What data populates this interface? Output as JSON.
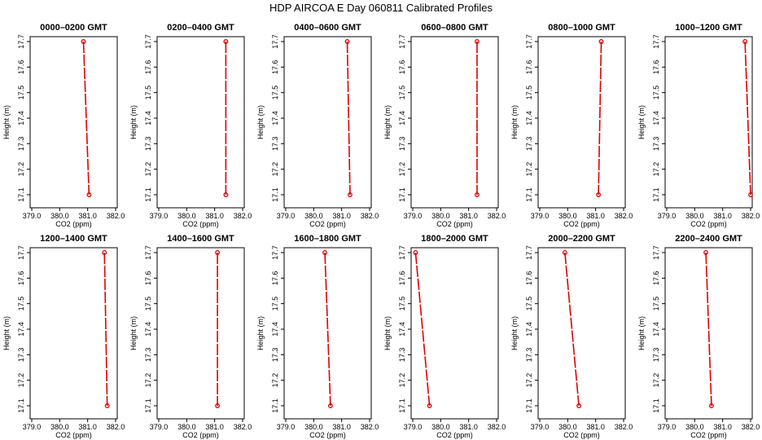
{
  "figure": {
    "title": "HDP  AIRCOA E  Day 060811  Calibrated Profiles"
  },
  "colors": {
    "profile": "#e00000",
    "axes": "#000000",
    "background": "#ffffff"
  },
  "chart_data": [
    {
      "type": "line",
      "title": "0000–0200 GMT",
      "xlabel": "CO2 (ppm)",
      "ylabel": "Height (m)",
      "xlim": [
        379.0,
        382.0
      ],
      "ylim": [
        17.1,
        17.7
      ],
      "xticks": [
        "379.0",
        "380.0",
        "381.0",
        "382.0"
      ],
      "yticks": [
        "17.1",
        "17.2",
        "17.3",
        "17.4",
        "17.5",
        "17.6",
        "17.7"
      ],
      "points": [
        {
          "x": 380.85,
          "y": 17.7
        },
        {
          "x": 381.05,
          "y": 17.1
        }
      ]
    },
    {
      "type": "line",
      "title": "0200–0400 GMT",
      "xlabel": "CO2 (ppm)",
      "ylabel": "Height (m)",
      "xlim": [
        379.0,
        382.0
      ],
      "ylim": [
        17.1,
        17.7
      ],
      "xticks": [
        "379.0",
        "380.0",
        "381.0",
        "382.0"
      ],
      "yticks": [
        "17.1",
        "17.2",
        "17.3",
        "17.4",
        "17.5",
        "17.6",
        "17.7"
      ],
      "points": [
        {
          "x": 381.4,
          "y": 17.7
        },
        {
          "x": 381.4,
          "y": 17.1
        }
      ]
    },
    {
      "type": "line",
      "title": "0400–0600 GMT",
      "xlabel": "CO2 (ppm)",
      "ylabel": "Height (m)",
      "xlim": [
        379.0,
        382.0
      ],
      "ylim": [
        17.1,
        17.7
      ],
      "xticks": [
        "379.0",
        "380.0",
        "381.0",
        "382.0"
      ],
      "yticks": [
        "17.1",
        "17.2",
        "17.3",
        "17.4",
        "17.5",
        "17.6",
        "17.7"
      ],
      "points": [
        {
          "x": 381.2,
          "y": 17.7
        },
        {
          "x": 381.3,
          "y": 17.1
        }
      ]
    },
    {
      "type": "line",
      "title": "0600–0800 GMT",
      "xlabel": "CO2 (ppm)",
      "ylabel": "Height (m)",
      "xlim": [
        379.0,
        382.0
      ],
      "ylim": [
        17.1,
        17.7
      ],
      "xticks": [
        "379.0",
        "380.0",
        "381.0",
        "382.0"
      ],
      "yticks": [
        "17.1",
        "17.2",
        "17.3",
        "17.4",
        "17.5",
        "17.6",
        "17.7"
      ],
      "points": [
        {
          "x": 381.3,
          "y": 17.7
        },
        {
          "x": 381.3,
          "y": 17.1
        }
      ]
    },
    {
      "type": "line",
      "title": "0800–1000 GMT",
      "xlabel": "CO2 (ppm)",
      "ylabel": "Height (m)",
      "xlim": [
        379.0,
        382.0
      ],
      "ylim": [
        17.1,
        17.7
      ],
      "xticks": [
        "379.0",
        "380.0",
        "381.0",
        "382.0"
      ],
      "yticks": [
        "17.1",
        "17.2",
        "17.3",
        "17.4",
        "17.5",
        "17.6",
        "17.7"
      ],
      "points": [
        {
          "x": 381.2,
          "y": 17.7
        },
        {
          "x": 381.1,
          "y": 17.1
        }
      ]
    },
    {
      "type": "line",
      "title": "1000–1200 GMT",
      "xlabel": "CO2 (ppm)",
      "ylabel": "Height (m)",
      "xlim": [
        379.0,
        382.0
      ],
      "ylim": [
        17.1,
        17.7
      ],
      "xticks": [
        "379.0",
        "380.0",
        "381.0",
        "382.0"
      ],
      "yticks": [
        "17.1",
        "17.2",
        "17.3",
        "17.4",
        "17.5",
        "17.6",
        "17.7"
      ],
      "points": [
        {
          "x": 381.8,
          "y": 17.7
        },
        {
          "x": 382.0,
          "y": 17.1
        }
      ]
    },
    {
      "type": "line",
      "title": "1200–1400 GMT",
      "xlabel": "CO2 (ppm)",
      "ylabel": "Height (m)",
      "xlim": [
        379.0,
        382.0
      ],
      "ylim": [
        17.1,
        17.7
      ],
      "xticks": [
        "379.0",
        "380.0",
        "381.0",
        "382.0"
      ],
      "yticks": [
        "17.1",
        "17.2",
        "17.3",
        "17.4",
        "17.5",
        "17.6",
        "17.7"
      ],
      "points": [
        {
          "x": 381.6,
          "y": 17.7
        },
        {
          "x": 381.7,
          "y": 17.1
        }
      ]
    },
    {
      "type": "line",
      "title": "1400–1600 GMT",
      "xlabel": "CO2 (ppm)",
      "ylabel": "Height (m)",
      "xlim": [
        379.0,
        382.0
      ],
      "ylim": [
        17.1,
        17.7
      ],
      "xticks": [
        "379.0",
        "380.0",
        "381.0",
        "382.0"
      ],
      "yticks": [
        "17.1",
        "17.2",
        "17.3",
        "17.4",
        "17.5",
        "17.6",
        "17.7"
      ],
      "points": [
        {
          "x": 381.1,
          "y": 17.7
        },
        {
          "x": 381.1,
          "y": 17.1
        }
      ]
    },
    {
      "type": "line",
      "title": "1600–1800 GMT",
      "xlabel": "CO2 (ppm)",
      "ylabel": "Height (m)",
      "xlim": [
        379.0,
        382.0
      ],
      "ylim": [
        17.1,
        17.7
      ],
      "xticks": [
        "379.0",
        "380.0",
        "381.0",
        "382.0"
      ],
      "yticks": [
        "17.1",
        "17.2",
        "17.3",
        "17.4",
        "17.5",
        "17.6",
        "17.7"
      ],
      "points": [
        {
          "x": 380.4,
          "y": 17.7
        },
        {
          "x": 380.6,
          "y": 17.1
        }
      ]
    },
    {
      "type": "line",
      "title": "1800–2000 GMT",
      "xlabel": "CO2 (ppm)",
      "ylabel": "Height (m)",
      "xlim": [
        379.0,
        382.0
      ],
      "ylim": [
        17.1,
        17.7
      ],
      "xticks": [
        "379.0",
        "380.0",
        "381.0",
        "382.0"
      ],
      "yticks": [
        "17.1",
        "17.2",
        "17.3",
        "17.4",
        "17.5",
        "17.6",
        "17.7"
      ],
      "points": [
        {
          "x": 379.1,
          "y": 17.7
        },
        {
          "x": 379.6,
          "y": 17.1
        }
      ]
    },
    {
      "type": "line",
      "title": "2000–2200 GMT",
      "xlabel": "CO2 (ppm)",
      "ylabel": "Height (m)",
      "xlim": [
        379.0,
        382.0
      ],
      "ylim": [
        17.1,
        17.7
      ],
      "xticks": [
        "379.0",
        "380.0",
        "381.0",
        "382.0"
      ],
      "yticks": [
        "17.1",
        "17.2",
        "17.3",
        "17.4",
        "17.5",
        "17.6",
        "17.7"
      ],
      "points": [
        {
          "x": 379.9,
          "y": 17.7
        },
        {
          "x": 380.4,
          "y": 17.1
        }
      ]
    },
    {
      "type": "line",
      "title": "2200–2400 GMT",
      "xlabel": "CO2 (ppm)",
      "ylabel": "Height (m)",
      "xlim": [
        379.0,
        382.0
      ],
      "ylim": [
        17.1,
        17.7
      ],
      "xticks": [
        "379.0",
        "380.0",
        "381.0",
        "382.0"
      ],
      "yticks": [
        "17.1",
        "17.2",
        "17.3",
        "17.4",
        "17.5",
        "17.6",
        "17.7"
      ],
      "points": [
        {
          "x": 380.4,
          "y": 17.7
        },
        {
          "x": 380.6,
          "y": 17.1
        }
      ]
    }
  ]
}
